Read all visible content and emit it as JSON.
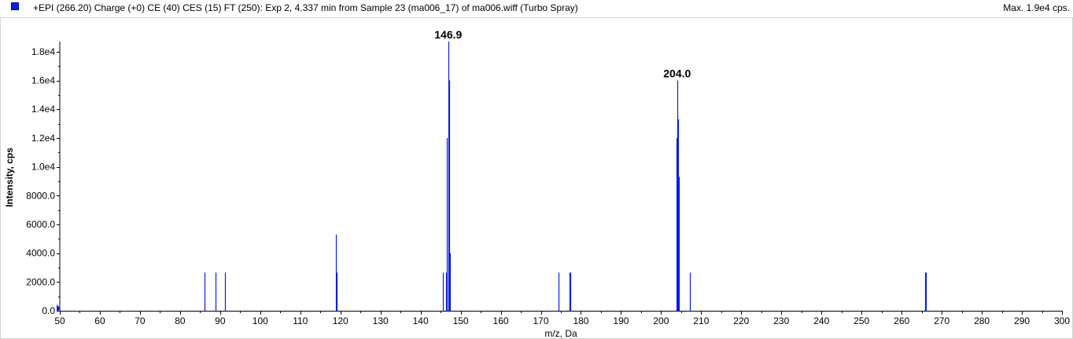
{
  "header": {
    "title": "+EPI (266.20) Charge (+0) CE (40) CES (15) FT (250): Exp 2, 4.337 min from Sample 23 (ma006_17) of ma006.wiff (Turbo Spray)",
    "max_label": "Max. 1.9e4 cps."
  },
  "colors": {
    "series": "#0a1ee6",
    "axis": "#000000",
    "frame": "#a0a0a0"
  },
  "chart_data": {
    "type": "bar",
    "title": "+EPI (266.20) Charge (+0) CE (40) CES (15) FT (250): Exp 2, 4.337 min from Sample 23 (ma006_17) of ma006.wiff (Turbo Spray)",
    "xlabel": "m/z, Da",
    "ylabel": "Intensity, cps",
    "xlim": [
      50,
      300
    ],
    "ylim": [
      0,
      18700
    ],
    "xticks": [
      50,
      60,
      70,
      80,
      90,
      100,
      110,
      120,
      130,
      140,
      150,
      160,
      170,
      180,
      190,
      200,
      210,
      220,
      230,
      240,
      250,
      260,
      270,
      280,
      290,
      300
    ],
    "xtick_labels": [
      "50",
      "60",
      "70",
      "80",
      "90",
      "100",
      "110",
      "120",
      "130",
      "140",
      "150",
      "160",
      "170",
      "180",
      "190",
      "200",
      "210",
      "220",
      "230",
      "240",
      "250",
      "260",
      "270",
      "280",
      "290",
      "300"
    ],
    "yticks": [
      0,
      2000,
      4000,
      6000,
      8000,
      10000,
      12000,
      14000,
      16000,
      18000
    ],
    "ytick_labels": [
      "0.0",
      "2000.0",
      "4000.0",
      "6000.0",
      "8000.0",
      "1.0e4",
      "1.2e4",
      "1.4e4",
      "1.6e4",
      "1.8e4"
    ],
    "grid": false,
    "peaks": [
      {
        "mz": 86.1,
        "intensity": 2650
      },
      {
        "mz": 88.9,
        "intensity": 2650
      },
      {
        "mz": 91.2,
        "intensity": 2650
      },
      {
        "mz": 118.9,
        "intensity": 5300
      },
      {
        "mz": 119.1,
        "intensity": 2650
      },
      {
        "mz": 145.6,
        "intensity": 2650
      },
      {
        "mz": 146.3,
        "intensity": 2650
      },
      {
        "mz": 146.6,
        "intensity": 12000
      },
      {
        "mz": 146.9,
        "intensity": 18700
      },
      {
        "mz": 147.1,
        "intensity": 16000
      },
      {
        "mz": 147.3,
        "intensity": 4000
      },
      {
        "mz": 174.4,
        "intensity": 2650
      },
      {
        "mz": 177.1,
        "intensity": 2650
      },
      {
        "mz": 177.3,
        "intensity": 2650
      },
      {
        "mz": 203.8,
        "intensity": 12000
      },
      {
        "mz": 204.0,
        "intensity": 16000
      },
      {
        "mz": 204.2,
        "intensity": 13300
      },
      {
        "mz": 204.4,
        "intensity": 9300
      },
      {
        "mz": 207.1,
        "intensity": 2650
      },
      {
        "mz": 265.9,
        "intensity": 2650
      },
      {
        "mz": 266.1,
        "intensity": 2650
      }
    ],
    "annotations": [
      {
        "text": "146.9",
        "mz": 146.9,
        "intensity": 18700
      },
      {
        "text": "204.0",
        "mz": 204.0,
        "intensity": 16000
      }
    ]
  }
}
